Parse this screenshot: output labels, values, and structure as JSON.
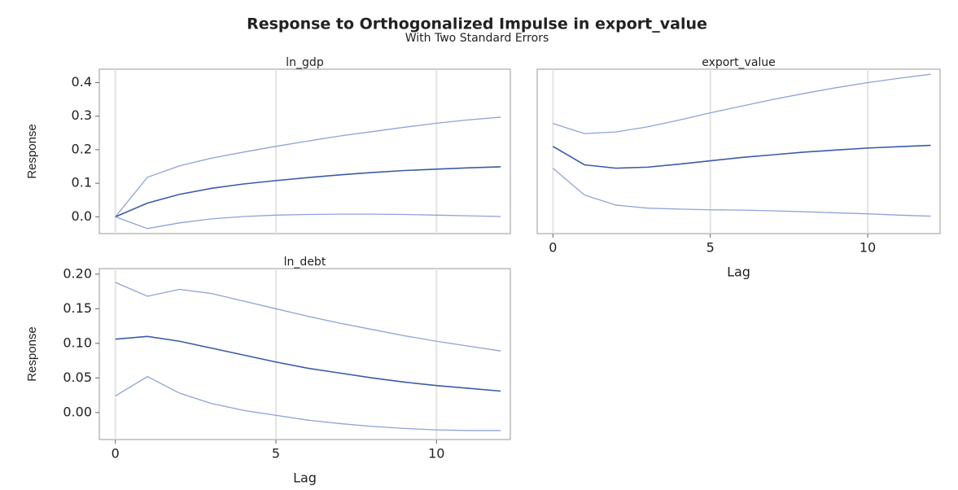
{
  "title": "Response to Orthogonalized Impulse in export_value",
  "subtitle": "With Two Standard Errors",
  "chart_data": [
    {
      "type": "line",
      "title": "ln_gdp",
      "ylabel": "Response",
      "x": [
        0,
        1,
        2,
        3,
        4,
        5,
        6,
        7,
        8,
        9,
        10,
        11,
        12
      ],
      "xlim": [
        -0.5,
        12.3
      ],
      "xticks": [
        0,
        5,
        10
      ],
      "ylim": [
        -0.05,
        0.44
      ],
      "yticks": [
        {
          "value": 0,
          "label": "0.0"
        },
        {
          "value": 0.1,
          "label": "0.1"
        },
        {
          "value": 0.2,
          "label": "0.2"
        },
        {
          "value": 0.3,
          "label": "0.3"
        },
        {
          "value": 0.4,
          "label": "0.4"
        }
      ],
      "grid": true,
      "series": [
        {
          "color": "#8fa3d8",
          "values": [
            0,
            0.118,
            0.152,
            0.175,
            0.193,
            0.21,
            0.226,
            0.241,
            0.254,
            0.267,
            0.279,
            0.289,
            0.297
          ]
        },
        {
          "color": "#3b5ba8",
          "values": [
            0,
            0.041,
            0.067,
            0.085,
            0.098,
            0.108,
            0.117,
            0.125,
            0.132,
            0.138,
            0.142,
            0.146,
            0.149
          ]
        },
        {
          "color": "#8fa3d8",
          "values": [
            0,
            -0.035,
            -0.018,
            -0.006,
            0.001,
            0.005,
            0.007,
            0.008,
            0.008,
            0.007,
            0.005,
            0.003,
            0.001
          ]
        }
      ]
    },
    {
      "type": "line",
      "title": "export_value",
      "xlabel": "Lag",
      "x": [
        0,
        1,
        2,
        3,
        4,
        5,
        6,
        7,
        8,
        9,
        10,
        11,
        12
      ],
      "xlim": [
        -0.5,
        12.3
      ],
      "xticks": [
        0,
        5,
        10
      ],
      "ylim": [
        -0.05,
        0.44
      ],
      "grid": true,
      "series": [
        {
          "color": "#8fa3d8",
          "values": [
            0.278,
            0.248,
            0.253,
            0.268,
            0.288,
            0.31,
            0.33,
            0.35,
            0.368,
            0.385,
            0.4,
            0.413,
            0.425
          ]
        },
        {
          "color": "#3b5ba8",
          "values": [
            0.21,
            0.155,
            0.145,
            0.148,
            0.157,
            0.167,
            0.177,
            0.185,
            0.193,
            0.199,
            0.205,
            0.209,
            0.213
          ]
        },
        {
          "color": "#8fa3d8",
          "values": [
            0.145,
            0.065,
            0.035,
            0.026,
            0.023,
            0.021,
            0.02,
            0.018,
            0.015,
            0.012,
            0.009,
            0.005,
            0.002
          ]
        }
      ]
    },
    {
      "type": "line",
      "title": "ln_debt",
      "xlabel": "Lag",
      "ylabel": "Response",
      "x": [
        0,
        1,
        2,
        3,
        4,
        5,
        6,
        7,
        8,
        9,
        10,
        11,
        12
      ],
      "xlim": [
        -0.5,
        12.3
      ],
      "xticks": [
        0,
        5,
        10
      ],
      "ylim": [
        -0.039,
        0.208
      ],
      "yticks": [
        {
          "value": 0,
          "label": "0.00"
        },
        {
          "value": 0.05,
          "label": "0.05"
        },
        {
          "value": 0.1,
          "label": "0.10"
        },
        {
          "value": 0.15,
          "label": "0.15"
        },
        {
          "value": 0.2,
          "label": "0.20"
        }
      ],
      "grid": true,
      "series": [
        {
          "color": "#8fa3d8",
          "values": [
            0.188,
            0.168,
            0.178,
            0.172,
            0.161,
            0.15,
            0.139,
            0.129,
            0.12,
            0.111,
            0.103,
            0.096,
            0.089
          ]
        },
        {
          "color": "#3b5ba8",
          "values": [
            0.106,
            0.11,
            0.103,
            0.093,
            0.083,
            0.073,
            0.064,
            0.057,
            0.05,
            0.044,
            0.039,
            0.035,
            0.031
          ]
        },
        {
          "color": "#8fa3d8",
          "values": [
            0.024,
            0.052,
            0.028,
            0.013,
            0.003,
            -0.004,
            -0.011,
            -0.016,
            -0.02,
            -0.023,
            -0.025,
            -0.026,
            -0.026
          ]
        }
      ]
    }
  ]
}
